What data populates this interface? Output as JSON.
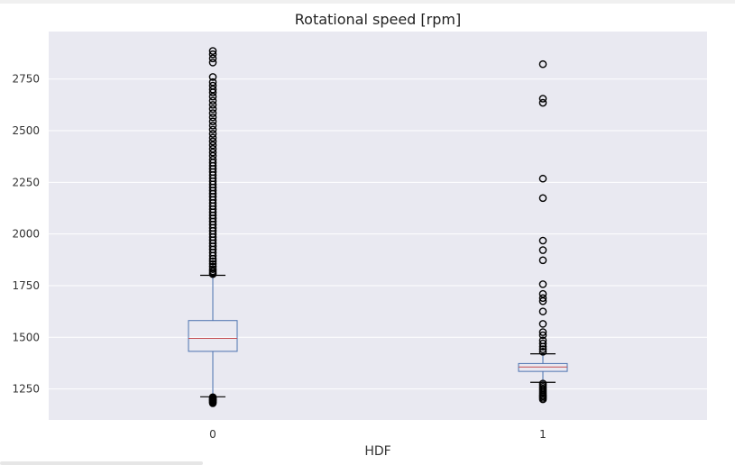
{
  "chart_data": {
    "type": "boxplot",
    "title": "Rotational speed [rpm]",
    "xlabel": "HDF",
    "ylabel": "",
    "ylim": [
      1100,
      2980
    ],
    "yticks": [
      1250,
      1500,
      1750,
      2000,
      2250,
      2500,
      2750
    ],
    "categories": [
      "0",
      "1"
    ],
    "colors": {
      "plot_background": "#e9e9f1",
      "grid": "#ffffff",
      "box": "#4c72b0",
      "median": "#c44e52",
      "flier": "#000000"
    },
    "boxes": [
      {
        "category": "0",
        "whisker_low": 1212,
        "q1": 1432,
        "median": 1495,
        "q3": 1581,
        "whisker_high": 1800,
        "outliers": [
          1181,
          1186,
          1190,
          1194,
          1198,
          1202,
          1206,
          1210,
          1806,
          1812,
          1820,
          1830,
          1842,
          1855,
          1868,
          1880,
          1895,
          1910,
          1925,
          1940,
          1955,
          1970,
          1985,
          2000,
          2015,
          2030,
          2045,
          2060,
          2075,
          2090,
          2105,
          2120,
          2135,
          2150,
          2165,
          2180,
          2195,
          2210,
          2225,
          2240,
          2255,
          2270,
          2285,
          2300,
          2315,
          2330,
          2345,
          2360,
          2378,
          2395,
          2412,
          2430,
          2448,
          2466,
          2485,
          2505,
          2525,
          2545,
          2565,
          2585,
          2605,
          2625,
          2645,
          2665,
          2685,
          2700,
          2718,
          2735,
          2760,
          2830,
          2850,
          2870,
          2886
        ]
      },
      {
        "category": "1",
        "whisker_low": 1282,
        "q1": 1335,
        "median": 1356,
        "q3": 1373,
        "whisker_high": 1420,
        "outliers": [
          1200,
          1207,
          1214,
          1220,
          1228,
          1236,
          1244,
          1252,
          1260,
          1268,
          1276,
          1430,
          1442,
          1455,
          1470,
          1485,
          1510,
          1525,
          1565,
          1625,
          1675,
          1690,
          1710,
          1757,
          1873,
          1922,
          1968,
          2174,
          2268,
          2635,
          2655,
          2822
        ]
      }
    ]
  }
}
